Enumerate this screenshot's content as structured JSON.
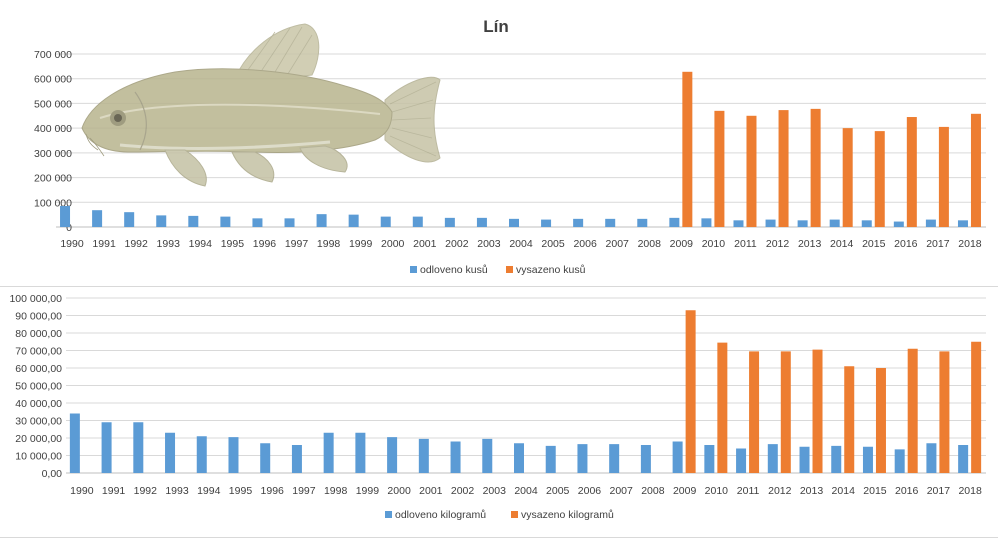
{
  "charts": [
    {
      "title": "Lín",
      "legend": [
        "odloveno kusů",
        "vysazeno kusů"
      ]
    },
    {
      "title": "",
      "legend": [
        "odloveno kilogramů",
        "vysazeno kilogramů"
      ]
    }
  ],
  "colors": {
    "blue": "#5b9bd5",
    "orange": "#ed7d31"
  },
  "chart_data": [
    {
      "type": "bar",
      "title": "Lín",
      "categories": [
        "1990",
        "1991",
        "1992",
        "1993",
        "1994",
        "1995",
        "1996",
        "1997",
        "1998",
        "1999",
        "2000",
        "2001",
        "2002",
        "2003",
        "2004",
        "2005",
        "2006",
        "2007",
        "2008",
        "2009",
        "2010",
        "2011",
        "2012",
        "2013",
        "2014",
        "2015",
        "2016",
        "2017",
        "2018"
      ],
      "series": [
        {
          "name": "odloveno kusů",
          "values": [
            85000,
            68000,
            60000,
            47000,
            45000,
            42000,
            35000,
            35000,
            52000,
            50000,
            42000,
            42000,
            37000,
            37000,
            33000,
            30000,
            33000,
            33000,
            33000,
            37000,
            35000,
            27000,
            30000,
            27000,
            30000,
            27000,
            22000,
            30000,
            27000
          ]
        },
        {
          "name": "vysazeno kusů",
          "values": [
            null,
            null,
            null,
            null,
            null,
            null,
            null,
            null,
            null,
            null,
            null,
            null,
            null,
            null,
            null,
            null,
            null,
            null,
            null,
            628000,
            470000,
            450000,
            473000,
            478000,
            400000,
            388000,
            445000,
            405000,
            458000
          ]
        }
      ],
      "ylim": [
        0,
        700000
      ],
      "yticks": [
        "0",
        "100 000",
        "200 000",
        "300 000",
        "400 000",
        "500 000",
        "600 000",
        "700 000"
      ],
      "legend_position": "bottom",
      "grid": true
    },
    {
      "type": "bar",
      "categories": [
        "1990",
        "1991",
        "1992",
        "1993",
        "1994",
        "1995",
        "1996",
        "1997",
        "1998",
        "1999",
        "2000",
        "2001",
        "2002",
        "2003",
        "2004",
        "2005",
        "2006",
        "2007",
        "2008",
        "2009",
        "2010",
        "2011",
        "2012",
        "2013",
        "2014",
        "2015",
        "2016",
        "2017",
        "2018"
      ],
      "series": [
        {
          "name": "odloveno kilogramů",
          "values": [
            34000,
            29000,
            29000,
            23000,
            21000,
            20500,
            17000,
            16000,
            23000,
            23000,
            20500,
            19500,
            18000,
            19500,
            17000,
            15500,
            16500,
            16500,
            16000,
            18000,
            16000,
            14000,
            16500,
            15000,
            15500,
            15000,
            13500,
            17000,
            16000
          ]
        },
        {
          "name": "vysazeno kilogramů",
          "values": [
            null,
            null,
            null,
            null,
            null,
            null,
            null,
            null,
            null,
            null,
            null,
            null,
            null,
            null,
            null,
            null,
            null,
            null,
            null,
            93000,
            74500,
            69500,
            69500,
            70500,
            61000,
            60000,
            71000,
            69500,
            75000
          ]
        }
      ],
      "ylim": [
        0,
        100000
      ],
      "yticks": [
        "0,00",
        "10 000,00",
        "20 000,00",
        "30 000,00",
        "40 000,00",
        "50 000,00",
        "60 000,00",
        "70 000,00",
        "80 000,00",
        "90 000,00",
        "100 000,00"
      ],
      "legend_position": "bottom",
      "grid": true
    }
  ]
}
